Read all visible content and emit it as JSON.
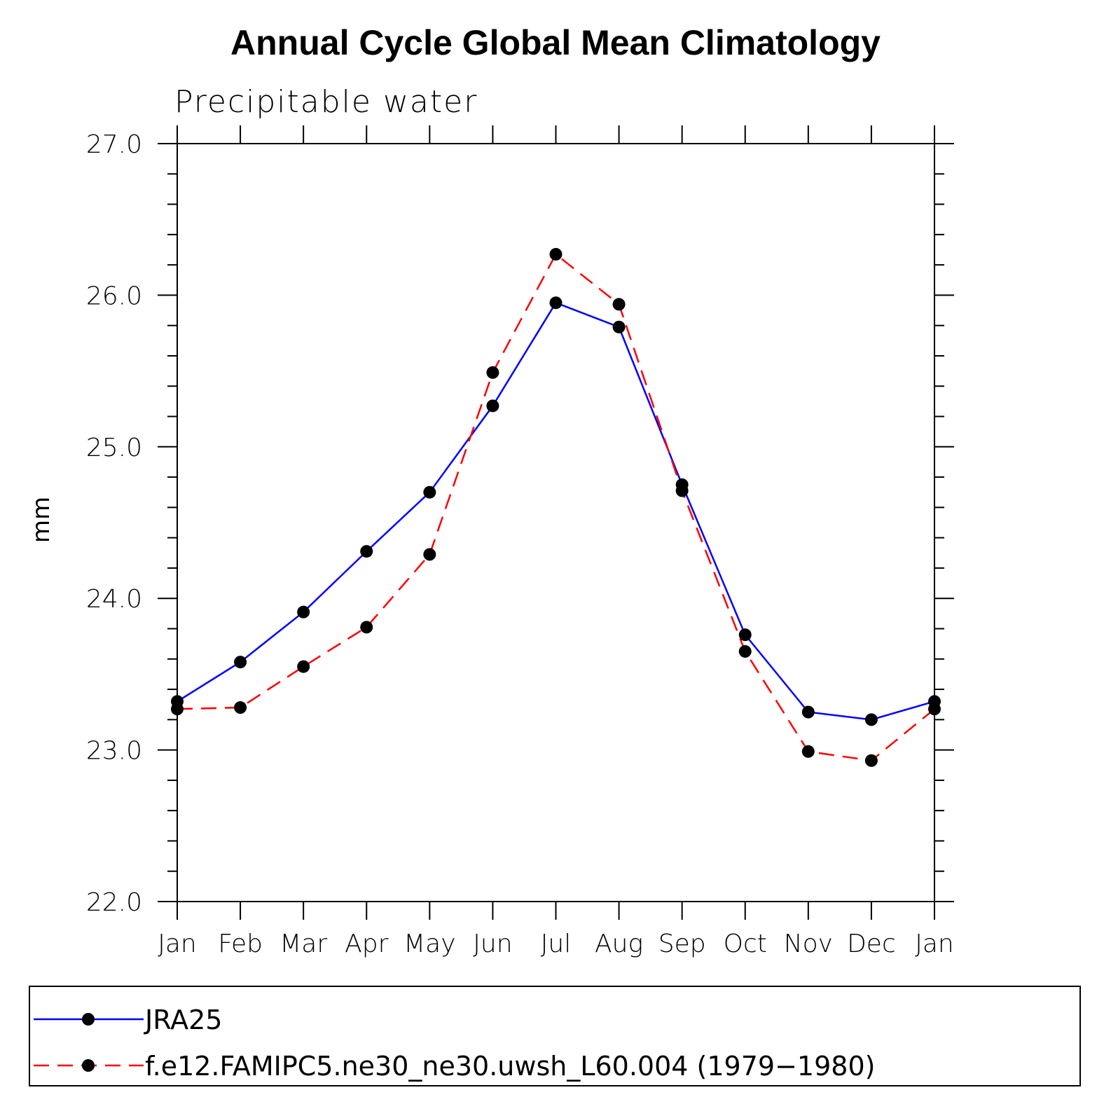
{
  "chart_data": {
    "type": "line",
    "title": "Annual Cycle Global Mean Climatology",
    "subtitle": "Precipitable water",
    "xlabel": "",
    "ylabel": "mm",
    "categories": [
      "Jan",
      "Feb",
      "Mar",
      "Apr",
      "May",
      "Jun",
      "Jul",
      "Aug",
      "Sep",
      "Oct",
      "Nov",
      "Dec",
      "Jan"
    ],
    "ylim": [
      22.0,
      27.0
    ],
    "yticks": [
      "22.0",
      "23.0",
      "24.0",
      "25.0",
      "26.0",
      "27.0"
    ],
    "series": [
      {
        "name": "JRA25",
        "color": "#0000ff",
        "dash": "solid",
        "values": [
          23.32,
          23.58,
          23.91,
          24.31,
          24.7,
          25.27,
          25.95,
          25.79,
          24.75,
          23.76,
          23.25,
          23.2,
          23.32
        ]
      },
      {
        "name": "f.e12.FAMIPC5.ne30_ne30.uwsh_L60.004 (1979−1980)",
        "color": "#ff0000",
        "dash": "dashed",
        "values": [
          23.27,
          23.28,
          23.55,
          23.81,
          24.29,
          25.49,
          26.27,
          25.94,
          24.71,
          23.65,
          22.99,
          22.93,
          23.27
        ]
      }
    ],
    "grid": false,
    "legend": "bottom"
  }
}
